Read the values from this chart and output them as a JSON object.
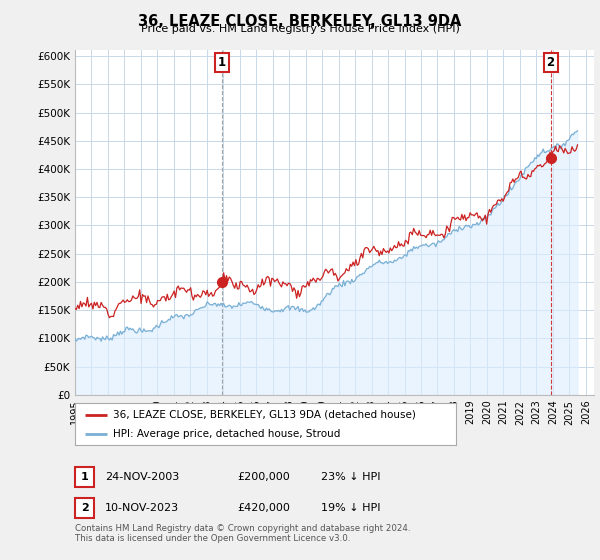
{
  "title": "36, LEAZE CLOSE, BERKELEY, GL13 9DA",
  "subtitle": "Price paid vs. HM Land Registry's House Price Index (HPI)",
  "ylabel_ticks": [
    "£0",
    "£50K",
    "£100K",
    "£150K",
    "£200K",
    "£250K",
    "£300K",
    "£350K",
    "£400K",
    "£450K",
    "£500K",
    "£550K",
    "£600K"
  ],
  "ytick_values": [
    0,
    50000,
    100000,
    150000,
    200000,
    250000,
    300000,
    350000,
    400000,
    450000,
    500000,
    550000,
    600000
  ],
  "ylim": [
    0,
    610000
  ],
  "xlim_start": 1995.0,
  "xlim_end": 2026.5,
  "hpi_color": "#7ab0d4",
  "hpi_fill_color": "#ddeeff",
  "price_color": "#cc2222",
  "vline1_color": "#999999",
  "vline2_color": "#cc2222",
  "annotation_box_color": "#cc2222",
  "background_color": "#f0f0f0",
  "plot_bg_color": "#ffffff",
  "grid_color": "#c8d8e8",
  "sale1_year": 2003.92,
  "sale1_price": 200000,
  "sale2_year": 2023.87,
  "sale2_price": 420000,
  "legend_line1": "36, LEAZE CLOSE, BERKELEY, GL13 9DA (detached house)",
  "legend_line2": "HPI: Average price, detached house, Stroud",
  "footnote1": "Contains HM Land Registry data © Crown copyright and database right 2024.",
  "footnote2": "This data is licensed under the Open Government Licence v3.0.",
  "table_row1": [
    "1",
    "24-NOV-2003",
    "£200,000",
    "23% ↓ HPI"
  ],
  "table_row2": [
    "2",
    "10-NOV-2023",
    "£420,000",
    "19% ↓ HPI"
  ]
}
